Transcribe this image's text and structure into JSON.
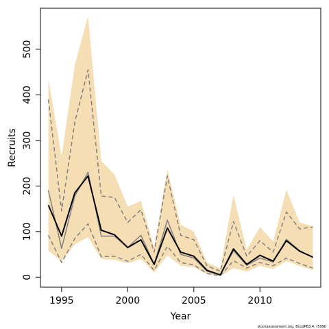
{
  "chart_data": {
    "type": "area",
    "xlabel": "Year",
    "ylabel": "Recruits",
    "xlim": [
      1993.4,
      2014.6
    ],
    "ylim": [
      -22,
      590
    ],
    "x_ticks": [
      1995,
      2000,
      2005,
      2010
    ],
    "y_ticks": [
      0,
      100,
      200,
      300,
      400,
      500
    ],
    "grid": false,
    "legend": "none",
    "footnote": "stockassessment.org, BcodPB3.4, r5990",
    "years": [
      1994,
      1995,
      1996,
      1997,
      1998,
      1999,
      2000,
      2001,
      2002,
      2003,
      2004,
      2005,
      2006,
      2007,
      2008,
      2009,
      2010,
      2011,
      2012,
      2013,
      2014
    ],
    "series": [
      {
        "role": "band_upper",
        "values": [
          435,
          265,
          465,
          573,
          255,
          225,
          155,
          167,
          65,
          237,
          115,
          100,
          32,
          20,
          180,
          60,
          110,
          78,
          192,
          120,
          112
        ]
      },
      {
        "role": "band_lower",
        "values": [
          58,
          35,
          72,
          88,
          40,
          38,
          30,
          40,
          10,
          48,
          25,
          22,
          6,
          2,
          20,
          12,
          25,
          18,
          35,
          25,
          15
        ]
      },
      {
        "role": "upper_dashed",
        "values": [
          390,
          145,
          340,
          455,
          178,
          175,
          120,
          148,
          55,
          222,
          92,
          82,
          25,
          13,
          122,
          46,
          80,
          55,
          143,
          106,
          110
        ]
      },
      {
        "role": "lower_dashed",
        "values": [
          92,
          32,
          85,
          117,
          45,
          46,
          35,
          50,
          15,
          68,
          32,
          27,
          8,
          3,
          36,
          20,
          32,
          25,
          42,
          30,
          20
        ]
      },
      {
        "role": "gray_solid",
        "values": [
          190,
          63,
          178,
          230,
          90,
          90,
          65,
          92,
          28,
          125,
          50,
          42,
          13,
          5,
          58,
          26,
          42,
          33,
          83,
          58,
          43
        ]
      },
      {
        "role": "estimate",
        "values": [
          158,
          90,
          185,
          222,
          103,
          93,
          65,
          82,
          28,
          108,
          55,
          46,
          15,
          5,
          62,
          28,
          48,
          35,
          80,
          57,
          44
        ]
      }
    ],
    "colors": {
      "band": "#f5deb3",
      "estimate": "#000000",
      "dashed": "#808080",
      "gray_solid": "#808080",
      "frame": "#000000"
    }
  }
}
